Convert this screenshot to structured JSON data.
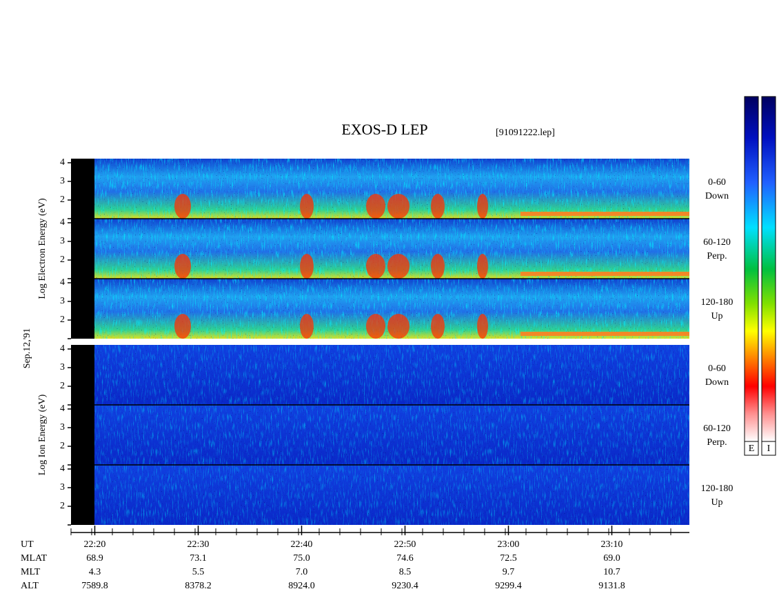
{
  "chart_data": {
    "type": "spectrogram",
    "title": "EXOS-D LEP",
    "file": "[91091222.lep]",
    "date": "Sep.12,'91",
    "xlabel": "UT",
    "xlim": [
      1337.7,
      1397.5
    ],
    "xticks": [
      {
        "value": 1340,
        "label": "22:20"
      },
      {
        "value": 1350,
        "label": "22:30"
      },
      {
        "value": 1360,
        "label": "22:40"
      },
      {
        "value": 1370,
        "label": "22:50"
      },
      {
        "value": 1380,
        "label": "23:00"
      },
      {
        "value": 1390,
        "label": "23:10"
      }
    ],
    "ylim": [
      1,
      4.22
    ],
    "yticks": [
      2,
      3,
      4
    ],
    "groups": [
      {
        "ylabel": "Log  Electron  Energy (eV)",
        "panels": [
          {
            "range": "0-60",
            "direction": "Down"
          },
          {
            "range": "60-120",
            "direction": "Perp."
          },
          {
            "range": "120-180",
            "direction": "Up"
          }
        ]
      },
      {
        "ylabel": "Log  Ion  Energy (eV)",
        "panels": [
          {
            "range": "0-60",
            "direction": "Down"
          },
          {
            "range": "60-120",
            "direction": "Perp."
          },
          {
            "range": "120-180",
            "direction": "Up"
          }
        ]
      }
    ],
    "orbit": [
      {
        "name": "MLAT",
        "values": [
          "68.9",
          "73.1",
          "75.0",
          "74.6",
          "72.5",
          "69.0"
        ]
      },
      {
        "name": "MLT",
        "values": [
          "4.3",
          "5.5",
          "7.0",
          "8.5",
          "9.7",
          "10.7"
        ]
      },
      {
        "name": "ALT",
        "values": [
          "7589.8",
          "8378.2",
          "8924.0",
          "9230.4",
          "9299.4",
          "9131.8"
        ]
      }
    ],
    "colorbars": [
      "E",
      "I"
    ]
  }
}
